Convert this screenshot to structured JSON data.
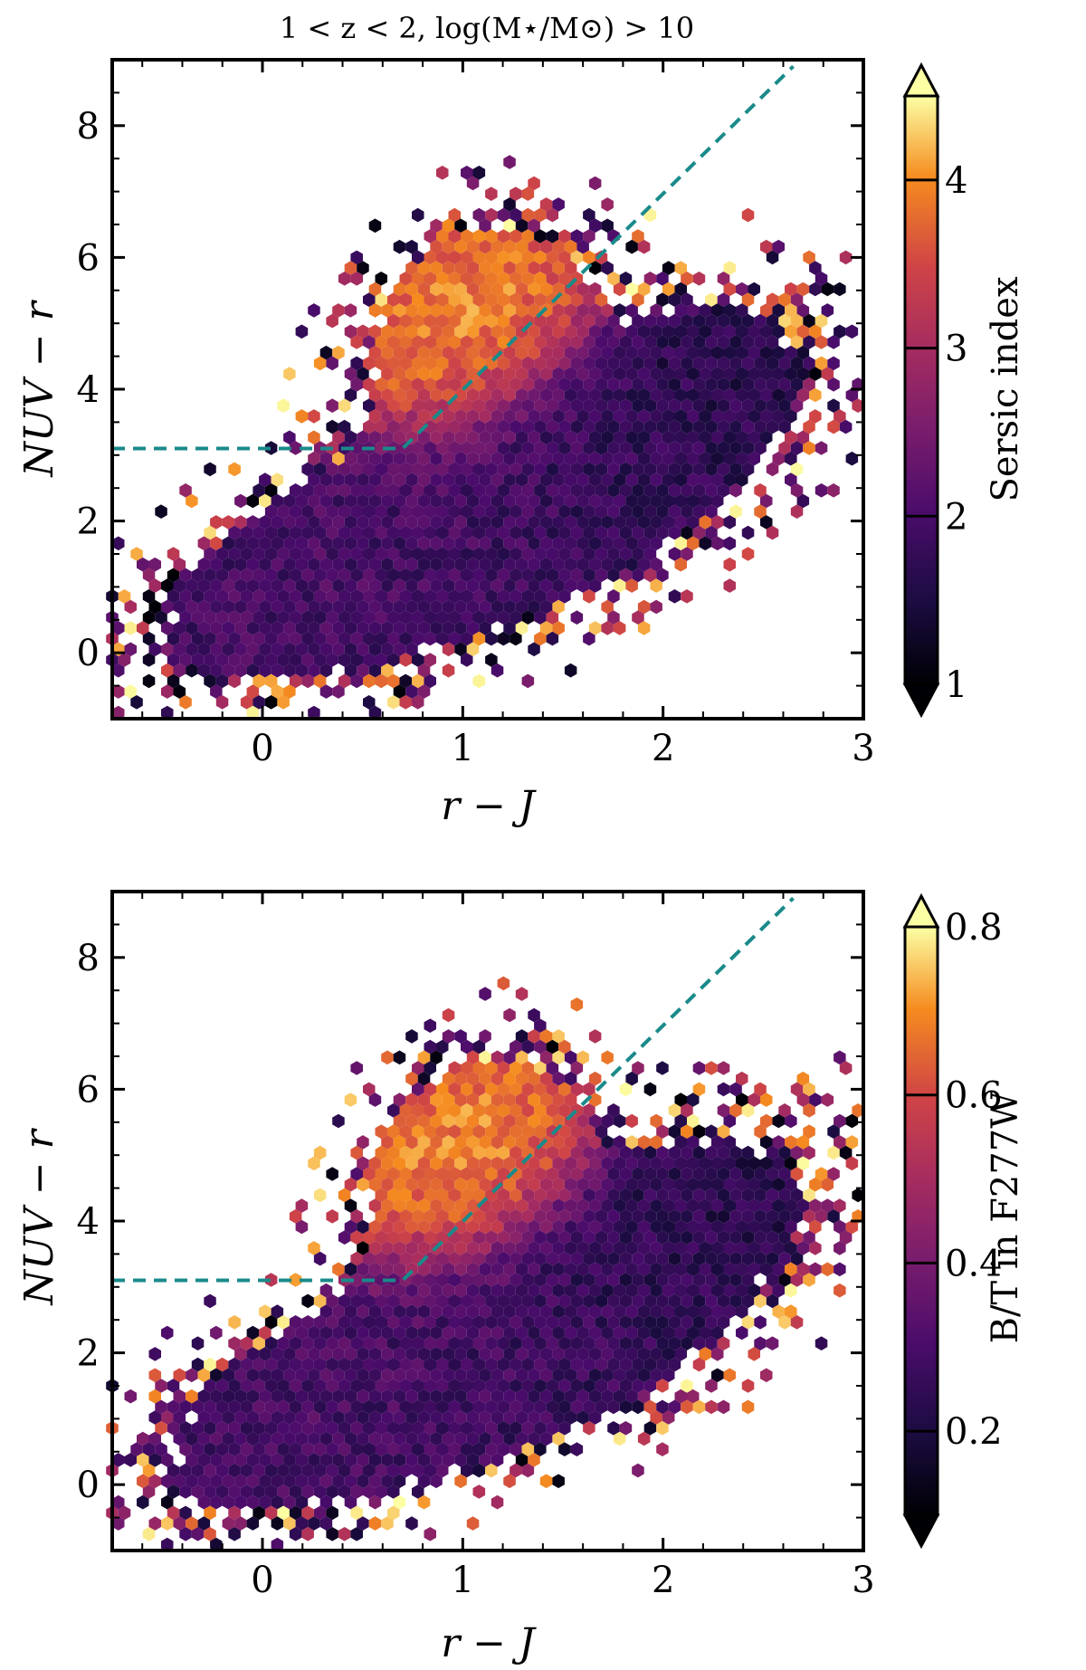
{
  "figure_title": "1 < z < 2, log(M⋆/M⊙) > 10",
  "chart_data": [
    {
      "type": "hexbin",
      "title": "1 < z < 2, log(M⋆/M⊙) > 10",
      "xlabel": "r − J",
      "ylabel": "NUV − r",
      "xlim": [
        -0.75,
        3.0
      ],
      "ylim": [
        -1.0,
        9.0
      ],
      "xticks": [
        0,
        1,
        2,
        3
      ],
      "yticks": [
        0,
        2,
        4,
        6,
        8
      ],
      "xtick_labels": [
        "0",
        "1",
        "2",
        "3"
      ],
      "ytick_labels": [
        "0",
        "2",
        "4",
        "6",
        "8"
      ],
      "colorbar": {
        "label": "Sersic index",
        "vmin": 1.0,
        "vmax": 4.5,
        "ticks": [
          1,
          2,
          3,
          4
        ],
        "tick_labels": [
          "1",
          "2",
          "3",
          "4"
        ],
        "extend": "both",
        "colormap": "inferno"
      },
      "selection_line": {
        "color": "#1a8a8a",
        "style": "dashed",
        "points": [
          [
            -0.75,
            3.1
          ],
          [
            0.7,
            3.1
          ],
          [
            2.65,
            8.9
          ]
        ]
      }
    },
    {
      "type": "hexbin",
      "title": "",
      "xlabel": "r − J",
      "ylabel": "NUV − r",
      "xlim": [
        -0.75,
        3.0
      ],
      "ylim": [
        -1.0,
        9.0
      ],
      "xticks": [
        0,
        1,
        2,
        3
      ],
      "yticks": [
        0,
        2,
        4,
        6,
        8
      ],
      "xtick_labels": [
        "0",
        "1",
        "2",
        "3"
      ],
      "ytick_labels": [
        "0",
        "2",
        "4",
        "6",
        "8"
      ],
      "colorbar": {
        "label": "B/T in F277W",
        "vmin": 0.1,
        "vmax": 0.8,
        "ticks": [
          0.2,
          0.4,
          0.6,
          0.8
        ],
        "tick_labels": [
          "0.2",
          "0.4",
          "0.6",
          "0.8"
        ],
        "extend": "both",
        "colormap": "inferno"
      },
      "selection_line": {
        "color": "#1a8a8a",
        "style": "dashed",
        "points": [
          [
            -0.75,
            3.1
          ],
          [
            0.7,
            3.1
          ],
          [
            2.65,
            8.9
          ]
        ]
      }
    }
  ]
}
